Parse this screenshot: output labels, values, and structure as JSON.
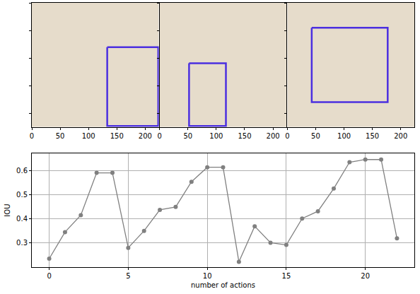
{
  "chart_data": [
    {
      "type": "image",
      "xlim": [
        0,
        224
      ],
      "ylim": [
        224,
        0
      ],
      "xticks": [
        0,
        50,
        100,
        150,
        200
      ],
      "yticks": [
        0,
        50,
        100,
        150,
        200
      ],
      "tick_labels": "x",
      "grid": false,
      "box": {
        "x0": 133,
        "y0": 80,
        "x1": 223,
        "y1": 222
      },
      "color": "#4b2fe0"
    },
    {
      "type": "image",
      "xlim": [
        0,
        224
      ],
      "ylim": [
        224,
        0
      ],
      "xticks": [
        0,
        50,
        100,
        150,
        200
      ],
      "yticks": [
        0,
        50,
        100,
        150,
        200
      ],
      "tick_labels": "x",
      "grid": false,
      "box": {
        "x0": 52,
        "y0": 109,
        "x1": 117,
        "y1": 222
      },
      "color": "#4b2fe0"
    },
    {
      "type": "image",
      "xlim": [
        0,
        224
      ],
      "ylim": [
        224,
        0
      ],
      "xticks": [
        0,
        50,
        100,
        150,
        200
      ],
      "yticks": [
        0,
        50,
        100,
        150,
        200
      ],
      "tick_labels": "x",
      "grid": false,
      "box": {
        "x0": 43,
        "y0": 45,
        "x1": 177,
        "y1": 179
      },
      "color": "#4b2fe0"
    },
    {
      "type": "line",
      "x_label": "number of actions",
      "y_label": "IOU",
      "x": [
        0,
        1,
        2,
        3,
        4,
        5,
        6,
        7,
        8,
        9,
        10,
        11,
        12,
        13,
        14,
        15,
        16,
        17,
        18,
        19,
        20,
        21,
        22
      ],
      "values": [
        0.235,
        0.345,
        0.415,
        0.59,
        0.59,
        0.28,
        0.35,
        0.437,
        0.449,
        0.553,
        0.613,
        0.613,
        0.222,
        0.369,
        0.301,
        0.292,
        0.401,
        0.431,
        0.525,
        0.634,
        0.645,
        0.645,
        0.319
      ],
      "color": "#808080",
      "marker": "circle",
      "line_style": "solid",
      "xlim": [
        -1.1,
        23.1
      ],
      "ylim": [
        0.2,
        0.67
      ],
      "xticks": [
        0,
        5,
        10,
        15,
        20
      ],
      "yticks": [
        0.3,
        0.4,
        0.5,
        0.6
      ],
      "grid": true
    }
  ]
}
